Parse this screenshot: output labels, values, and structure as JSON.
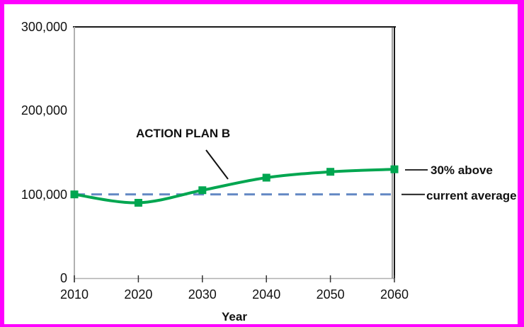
{
  "frame": {
    "border_color": "#FF00FF",
    "background_color": "#FFFFFF"
  },
  "colors": {
    "series_green": "#00A650",
    "reference_blue": "#6589C4",
    "text": "#111111",
    "plot_border_dark": "#1a1a1a",
    "plot_border_light": "#b0b0b0"
  },
  "annotations": {
    "action_plan": "ACTION PLAN B",
    "above": "30% above",
    "current_avg": "current average"
  },
  "chart_data": {
    "type": "line",
    "title": "",
    "xlabel": "Year",
    "ylabel": "",
    "xlim": [
      2010,
      2060
    ],
    "ylim": [
      0,
      300000
    ],
    "grid": false,
    "legend": "none",
    "x": [
      2010,
      2020,
      2030,
      2040,
      2050,
      2060
    ],
    "series": [
      {
        "name": "ACTION PLAN B",
        "values": [
          100000,
          90000,
          105000,
          120000,
          127000,
          130000
        ],
        "color": "#00A650",
        "marker": "square",
        "smooth": true,
        "end_label": "30% above"
      }
    ],
    "reference_line": {
      "label": "current average",
      "value": 100000,
      "color": "#6589C4",
      "style": "dashed"
    },
    "xticks": [
      {
        "value": 2010,
        "label": "2010"
      },
      {
        "value": 2020,
        "label": "2020"
      },
      {
        "value": 2030,
        "label": "2030"
      },
      {
        "value": 2040,
        "label": "2040"
      },
      {
        "value": 2050,
        "label": "2050"
      },
      {
        "value": 2060,
        "label": "2060"
      }
    ],
    "yticks": [
      {
        "value": 0,
        "label": "0"
      },
      {
        "value": 100000,
        "label": "100,000"
      },
      {
        "value": 200000,
        "label": "200,000"
      },
      {
        "value": 300000,
        "label": "300,000"
      }
    ]
  }
}
